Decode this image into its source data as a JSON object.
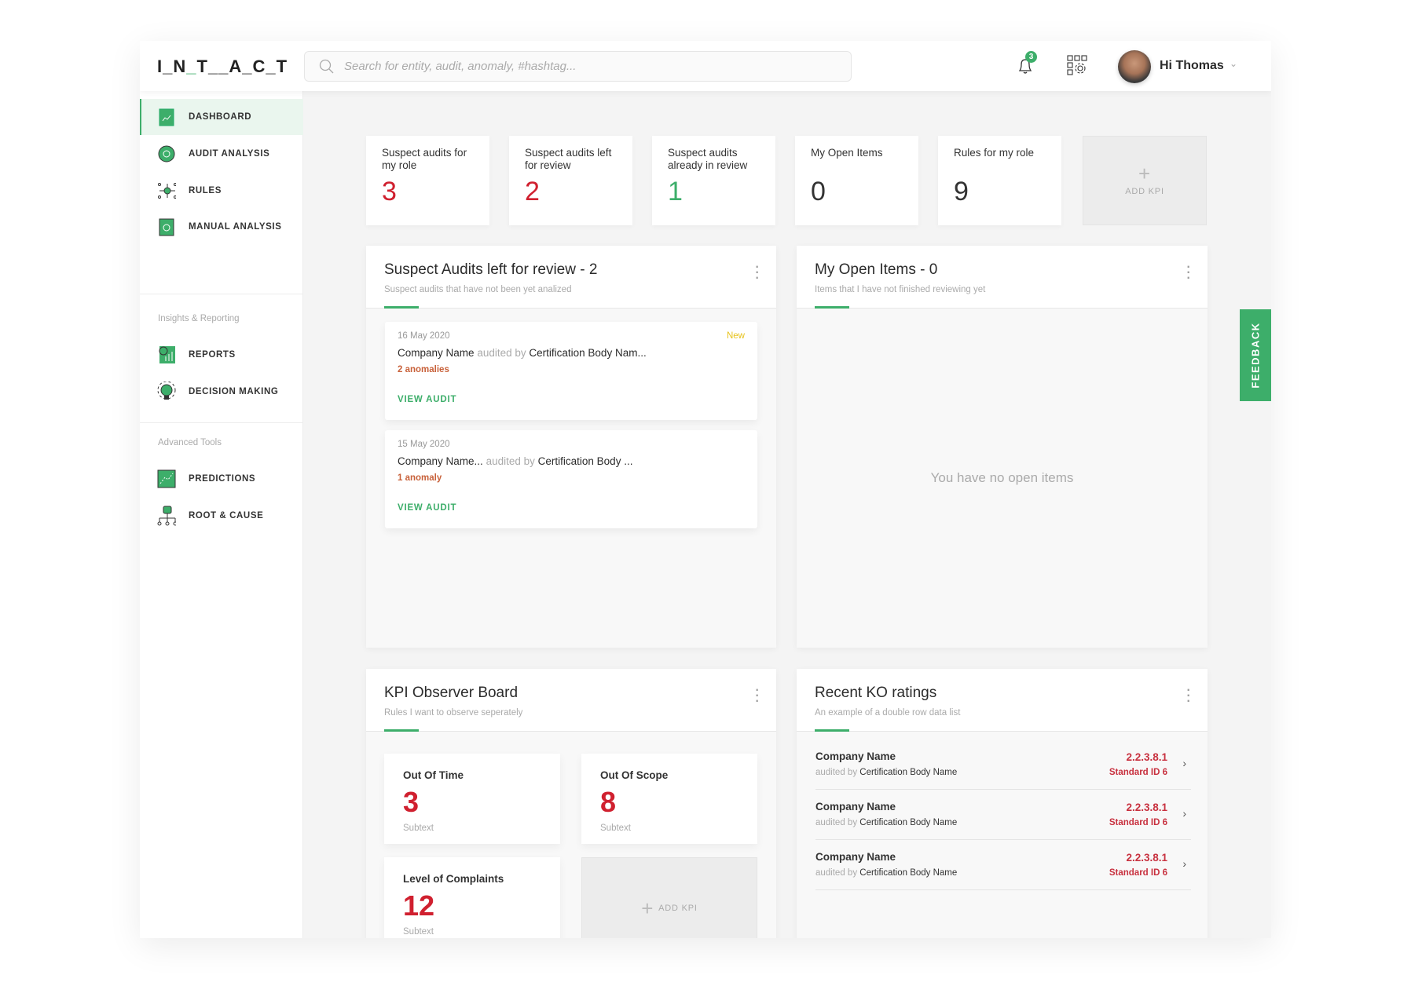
{
  "header": {
    "logo": {
      "parts": [
        "I_N",
        "_",
        "T__A_C_T"
      ]
    },
    "search_placeholder": "Search for entity, audit, anomaly, #hashtag...",
    "notifications_count": "3",
    "greeting": "Hi Thomas"
  },
  "sidebar": {
    "items": [
      {
        "label": "DASHBOARD",
        "icon": "dashboard-icon"
      },
      {
        "label": "AUDIT ANALYSIS",
        "icon": "audit-analysis-icon"
      },
      {
        "label": "RULES",
        "icon": "rules-icon"
      },
      {
        "label": "MANUAL ANALYSIS",
        "icon": "manual-analysis-icon"
      }
    ],
    "section1": "Insights & Reporting",
    "items2": [
      {
        "label": "REPORTS",
        "icon": "reports-icon"
      },
      {
        "label": "DECISION MAKING",
        "icon": "lightbulb-icon"
      }
    ],
    "section2": "Advanced Tools",
    "items3": [
      {
        "label": "PREDICTIONS",
        "icon": "predictions-icon"
      },
      {
        "label": "ROOT & CAUSE",
        "icon": "hierarchy-icon"
      }
    ]
  },
  "kpis": [
    {
      "title": "Suspect audits for my role",
      "value": "3",
      "color": "#d0202f"
    },
    {
      "title": "Suspect audits left for review",
      "value": "2",
      "color": "#d0202f"
    },
    {
      "title": "Suspect audits already in review",
      "value": "1",
      "color": "#3dae6a"
    },
    {
      "title": "My Open Items",
      "value": "0",
      "color": "#333333"
    },
    {
      "title": "Rules for my role",
      "value": "9",
      "color": "#333333"
    }
  ],
  "add_kpi": "ADD KPI",
  "audits_panel": {
    "title": "Suspect Audits left for review - 2",
    "subtitle": "Suspect audits that have not been yet analized",
    "audits": [
      {
        "date": "16 May 2020",
        "badge": "New",
        "company": "Company Name",
        "audited_by": "audited by",
        "body": "Certification Body Nam...",
        "anomalies": "2 anomalies",
        "action": "VIEW AUDIT"
      },
      {
        "date": "15 May 2020",
        "badge": "",
        "company": "Company Name...",
        "audited_by": "audited by",
        "body": "Certification Body ...",
        "anomalies": "1 anomaly",
        "action": "VIEW AUDIT"
      }
    ]
  },
  "open_items_panel": {
    "title": "My Open Items - 0",
    "subtitle": "Items that I have not finished reviewing yet",
    "empty": "You have no open items"
  },
  "kpi_board": {
    "title": "KPI Observer Board",
    "subtitle": "Rules I want to observe seperately",
    "cards": [
      {
        "title": "Out Of Time",
        "value": "3",
        "sub": "Subtext"
      },
      {
        "title": "Out Of Scope",
        "value": "8",
        "sub": "Subtext"
      },
      {
        "title": "Level of Complaints",
        "value": "12",
        "sub": "Subtext"
      }
    ]
  },
  "ko_panel": {
    "title": "Recent KO ratings",
    "subtitle": "An example of a double row data list",
    "rows": [
      {
        "company": "Company Name",
        "audited_by": "audited by",
        "body": "Certification Body Name",
        "code": "2.2.3.8.1",
        "standard": "Standard ID 6"
      },
      {
        "company": "Company Name",
        "audited_by": "audited by",
        "body": "Certification Body Name",
        "code": "2.2.3.8.1",
        "standard": "Standard ID 6"
      },
      {
        "company": "Company Name",
        "audited_by": "audited by",
        "body": "Certification Body Name",
        "code": "2.2.3.8.1",
        "standard": "Standard ID 6"
      }
    ]
  },
  "feedback": "FEEDBACK",
  "colors": {
    "accent": "#3dae6a",
    "alert": "#d0202f",
    "anomaly": "#c8613a",
    "new": "#e7c21a"
  }
}
